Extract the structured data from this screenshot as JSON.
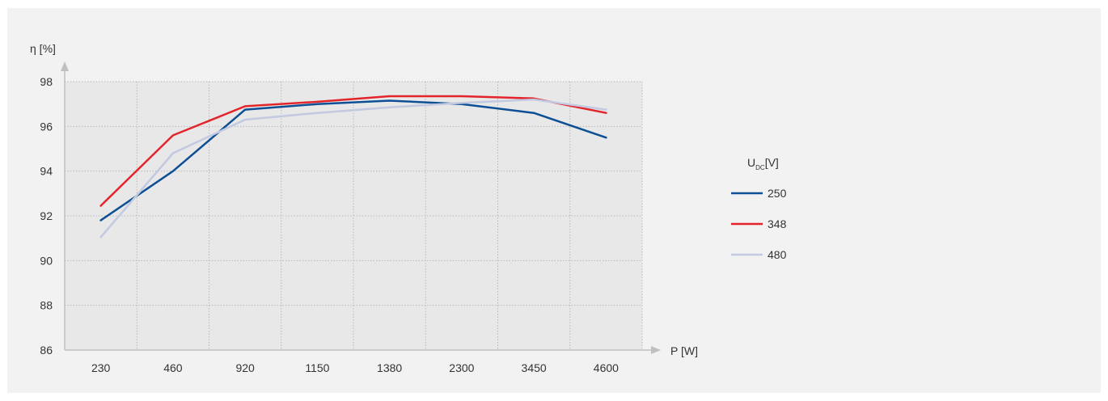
{
  "chart_data": {
    "type": "line",
    "title": "",
    "ylabel": "η [%]",
    "xlabel": "P [W]",
    "categories": [
      "230",
      "460",
      "920",
      "1150",
      "1380",
      "2300",
      "3450",
      "4600"
    ],
    "ylim": [
      86,
      98
    ],
    "yticks": [
      86,
      88,
      90,
      92,
      94,
      96,
      98
    ],
    "grid": true,
    "legend": {
      "title_main": "U",
      "title_sub": "DC",
      "title_unit": "[V]",
      "placement": "right"
    },
    "series": [
      {
        "name": "250",
        "color": "#0d4f94",
        "values": [
          91.8,
          94.0,
          96.75,
          97.0,
          97.15,
          97.0,
          96.6,
          95.5
        ]
      },
      {
        "name": "348",
        "color": "#e3242b",
        "values": [
          92.45,
          95.6,
          96.9,
          97.1,
          97.35,
          97.35,
          97.25,
          96.6
        ]
      },
      {
        "name": "480",
        "color": "#c2c9e1",
        "values": [
          91.05,
          94.8,
          96.3,
          96.6,
          96.85,
          97.05,
          97.2,
          96.75
        ]
      }
    ]
  }
}
